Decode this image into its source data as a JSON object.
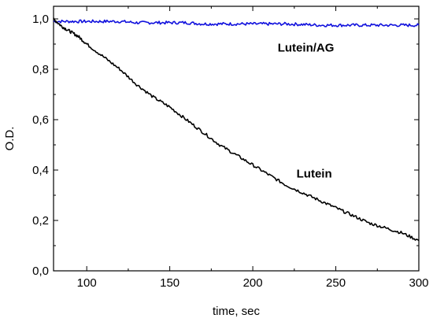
{
  "chart_data": {
    "type": "line",
    "xlabel": "time, sec",
    "ylabel": "O.D.",
    "xlim": [
      80,
      300
    ],
    "ylim": [
      0.0,
      1.05
    ],
    "x_ticks": [
      100,
      150,
      200,
      250,
      300
    ],
    "x_tick_labels": [
      "100",
      "150",
      "200",
      "250",
      "300"
    ],
    "y_ticks": [
      0.0,
      0.2,
      0.4,
      0.6,
      0.8,
      1.0
    ],
    "y_tick_labels": [
      "0,0",
      "0,2",
      "0,4",
      "0,6",
      "0,8",
      "1,0"
    ],
    "grid": false,
    "annotations": [
      {
        "text": "Lutein/AG",
        "x": 232,
        "y": 0.87
      },
      {
        "text": "Lutein",
        "x": 237,
        "y": 0.37
      }
    ],
    "series": [
      {
        "name": "Lutein/AG",
        "color": "#1010dd",
        "x": [
          80,
          90,
          100,
          110,
          120,
          130,
          140,
          150,
          160,
          170,
          180,
          190,
          200,
          210,
          220,
          230,
          240,
          250,
          260,
          270,
          280,
          290,
          300
        ],
        "y": [
          0.99,
          0.99,
          0.99,
          0.99,
          0.99,
          0.985,
          0.985,
          0.985,
          0.985,
          0.98,
          0.98,
          0.98,
          0.98,
          0.98,
          0.98,
          0.978,
          0.975,
          0.975,
          0.975,
          0.975,
          0.975,
          0.975,
          0.975
        ]
      },
      {
        "name": "Lutein",
        "color": "#000000",
        "x": [
          80,
          85,
          90,
          95,
          100,
          110,
          120,
          130,
          140,
          150,
          160,
          170,
          180,
          190,
          200,
          210,
          220,
          230,
          240,
          250,
          260,
          270,
          280,
          290,
          300
        ],
        "y": [
          1.0,
          0.97,
          0.95,
          0.93,
          0.9,
          0.85,
          0.8,
          0.74,
          0.69,
          0.65,
          0.6,
          0.55,
          0.5,
          0.46,
          0.42,
          0.38,
          0.34,
          0.31,
          0.28,
          0.25,
          0.22,
          0.19,
          0.17,
          0.15,
          0.12
        ]
      }
    ]
  }
}
